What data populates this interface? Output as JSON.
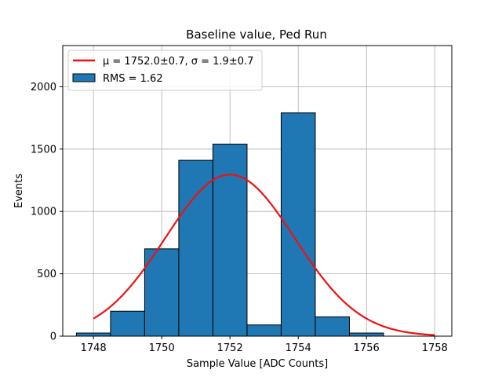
{
  "chart_data": {
    "type": "bar",
    "title": "Baseline value, Ped Run",
    "xlabel": "Sample Value [ADC Counts]",
    "ylabel": "Events",
    "xlim": [
      1747.1,
      1758.5
    ],
    "ylim": [
      0,
      2330
    ],
    "xticks": [
      1748,
      1750,
      1752,
      1754,
      1756,
      1758
    ],
    "yticks": [
      0,
      500,
      1000,
      1500,
      2000
    ],
    "grid": true,
    "legend_position": "top-left",
    "bins": [
      {
        "left": 1747.5,
        "right": 1748.5,
        "value": 25
      },
      {
        "left": 1748.5,
        "right": 1749.5,
        "value": 200
      },
      {
        "left": 1749.5,
        "right": 1750.5,
        "value": 700
      },
      {
        "left": 1750.5,
        "right": 1751.5,
        "value": 1410
      },
      {
        "left": 1751.5,
        "right": 1752.5,
        "value": 1540
      },
      {
        "left": 1752.5,
        "right": 1753.5,
        "value": 90
      },
      {
        "left": 1753.5,
        "right": 1754.5,
        "value": 1790
      },
      {
        "left": 1754.5,
        "right": 1755.5,
        "value": 155
      },
      {
        "left": 1755.5,
        "right": 1756.5,
        "value": 25
      }
    ],
    "fit_curve": {
      "type": "gaussian",
      "mu": 1752.0,
      "sigma": 1.9,
      "amplitude": 1295,
      "x_range": [
        1748,
        1758
      ]
    },
    "series": [
      {
        "name": "μ = 1752.0±0.7, σ = 1.9±0.7",
        "kind": "line",
        "color": "#ee1111"
      },
      {
        "name": "RMS = 1.62",
        "kind": "bar",
        "color": "#1f77b4"
      }
    ],
    "colors": {
      "bar_fill": "#1f77b4",
      "bar_edge": "#000000",
      "fit_line": "#ee1111",
      "grid": "#b0b0b0"
    }
  }
}
